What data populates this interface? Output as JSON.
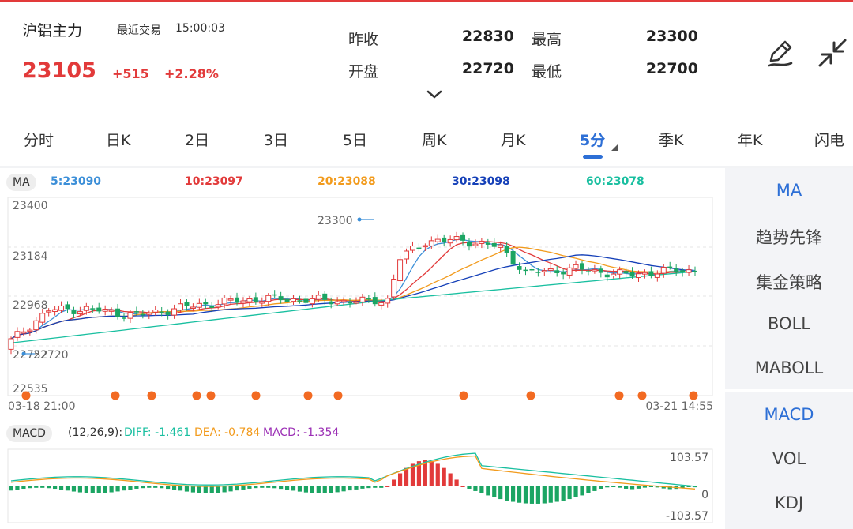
{
  "header": {
    "name": "沪铝主力",
    "last_trade_label": "最近交易",
    "time": "15:00:03",
    "price": "23105",
    "change": "+515",
    "change_pct": "+2.28%",
    "quotes": {
      "prev_close_label": "昨收",
      "prev_close": "22830",
      "high_label": "最高",
      "high": "23300",
      "open_label": "开盘",
      "open": "22720",
      "low_label": "最低",
      "low": "22700"
    },
    "edit_icon": "pen-icon",
    "collapse_icon": "collapse-arrows-icon"
  },
  "tabs": [
    "分时",
    "日K",
    "2日",
    "3日",
    "5日",
    "周K",
    "月K",
    "5分",
    "季K",
    "年K",
    "闪电"
  ],
  "active_tab": "5分",
  "ma": {
    "label": "MA",
    "ma5": "5:23090",
    "ma10": "10:23097",
    "ma20": "20:23088",
    "ma30": "30:23098",
    "ma60": "60:23078"
  },
  "price_axis": {
    "top": "23400",
    "upper": "23184",
    "middle": "22968",
    "lower": "22752",
    "bottom": "22535"
  },
  "annotations": {
    "high": "23300",
    "low": "22720"
  },
  "time_axis": {
    "start": "03-18 21:00",
    "end": "03-21 14:55"
  },
  "macd": {
    "label": "MACD",
    "params": "(12,26,9):",
    "diff": "DIFF: -1.461",
    "dea": "DEA: -0.784",
    "macd": "MACD: -1.354",
    "axis_top": "103.57",
    "axis_mid": "0",
    "axis_bottom": "-103.57"
  },
  "side_indicators": {
    "main": [
      "MA",
      "趋势先锋",
      "集金策略",
      "BOLL",
      "MABOLL"
    ],
    "sub": [
      "MACD",
      "VOL",
      "KDJ"
    ],
    "active_main": "MA",
    "active_sub": "MACD"
  },
  "colors": {
    "up": "#e23a3a",
    "down": "#1ba563",
    "accent": "#2d6fd6",
    "ma5": "#3c8fd8",
    "ma10": "#e23a3a",
    "ma20": "#f29b1d",
    "ma30": "#1540b8",
    "ma60": "#19bfa0",
    "marker": "#f26a22"
  }
}
